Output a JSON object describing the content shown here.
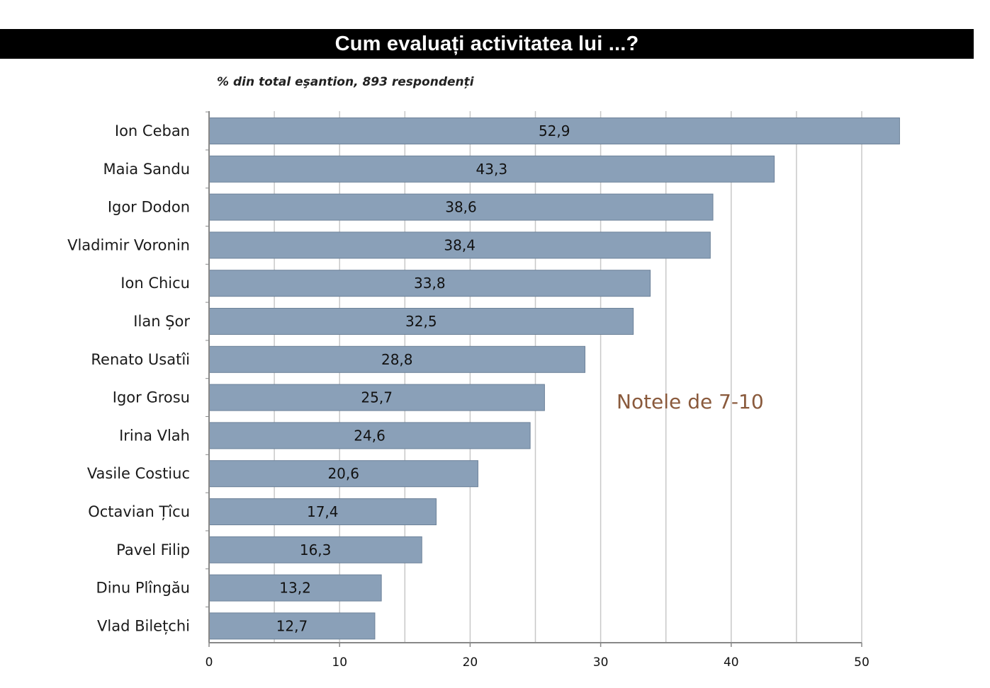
{
  "title": "Cum evaluați activitatea lui ...?",
  "subtitle": "% din total eşantion, 893 respondenți",
  "annotation": "Notele de 7-10",
  "colors": {
    "bar_fill": "#8aa0b8",
    "bar_stroke": "#6d8299",
    "grid": "#c8c8c8",
    "axis": "#888888",
    "annotation": "#8a5a3c",
    "title_bg": "#000000"
  },
  "chart_data": {
    "type": "bar",
    "orientation": "horizontal",
    "categories": [
      "Ion Ceban",
      "Maia Sandu",
      "Igor Dodon",
      "Vladimir Voronin",
      "Ion Chicu",
      "Ilan Șor",
      "Renato Usatîi",
      "Igor Grosu",
      "Irina Vlah",
      "Vasile Costiuc",
      "Octavian Țîcu",
      "Pavel Filip",
      "Dinu Plîngău",
      "Vlad Bilețchi"
    ],
    "values": [
      52.9,
      43.3,
      38.6,
      38.4,
      33.8,
      32.5,
      28.8,
      25.7,
      24.6,
      20.6,
      17.4,
      16.3,
      13.2,
      12.7
    ],
    "value_labels": [
      "52,9",
      "43,3",
      "38,6",
      "38,4",
      "33,8",
      "32,5",
      "28,8",
      "25,7",
      "24,6",
      "20,6",
      "17,4",
      "16,3",
      "13,2",
      "12,7"
    ],
    "x_ticks": [
      0,
      10,
      20,
      30,
      40,
      50
    ],
    "xlim": [
      0,
      50
    ],
    "grid": true,
    "legend": "none",
    "title": "Cum evaluați activitatea lui ...?",
    "xlabel": "",
    "ylabel": ""
  }
}
